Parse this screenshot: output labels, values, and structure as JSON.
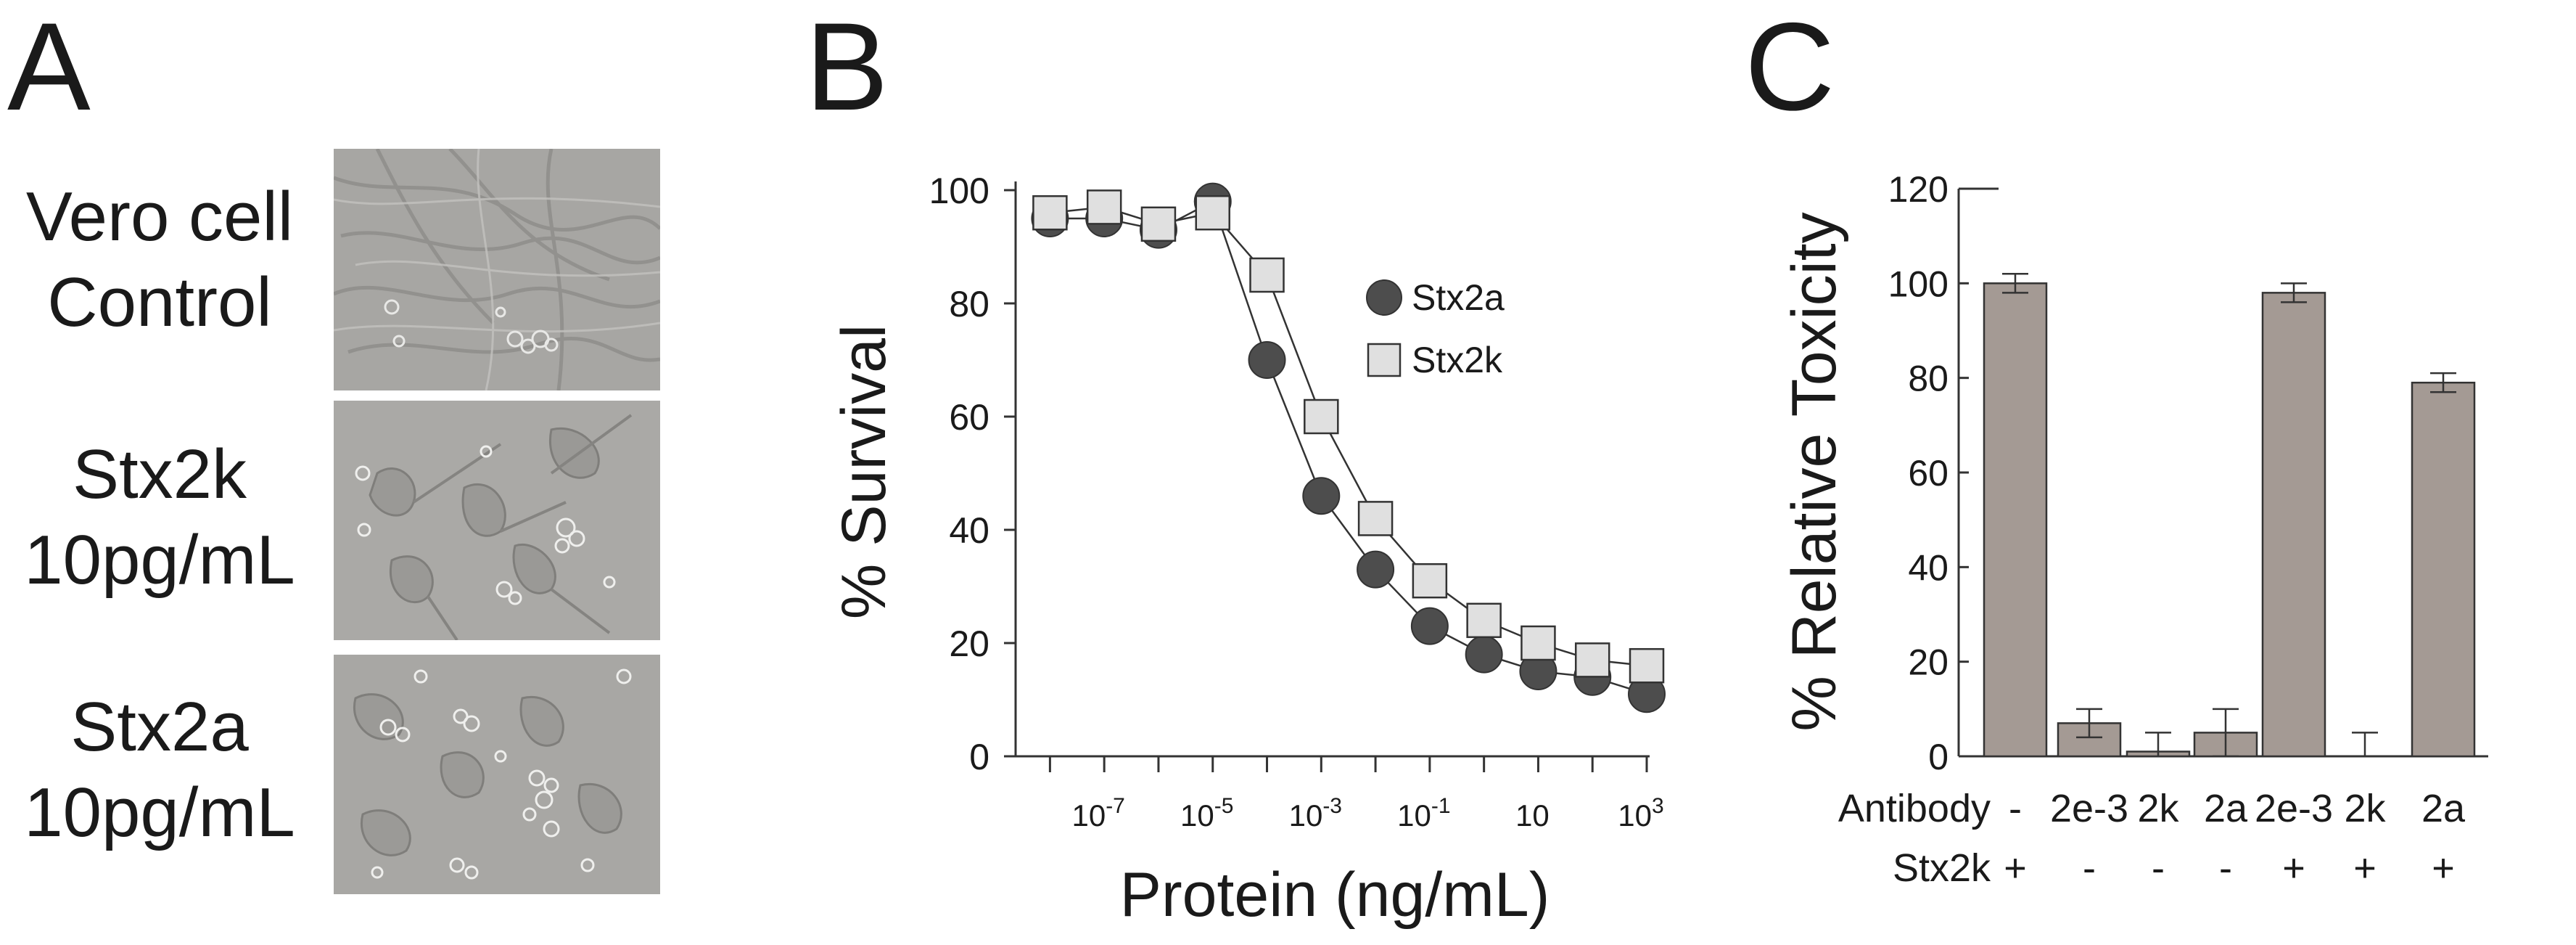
{
  "panels": {
    "a": {
      "letter": "A",
      "rows": [
        {
          "line1": "Vero cell",
          "line2": "Control"
        },
        {
          "line1": "Stx2k",
          "line2": "10pg/mL"
        },
        {
          "line1": "Stx2a",
          "line2": "10pg/mL"
        }
      ]
    },
    "b": {
      "letter": "B"
    },
    "c": {
      "letter": "C"
    }
  },
  "chart_data": [
    {
      "type": "scatter",
      "panel": "B",
      "title": "",
      "xlabel": "Protein (ng/mL)",
      "ylabel": "% Survival",
      "xscale": "log10",
      "xlim_exp": [
        -8.5,
        3
      ],
      "ylim": [
        0,
        100
      ],
      "yticks": [
        0,
        20,
        40,
        60,
        80,
        100
      ],
      "ytick_labels": [
        "0",
        "20",
        "40",
        "60",
        "80",
        "100"
      ],
      "xtick_labels": [
        {
          "exp": -7,
          "base": "10",
          "sup": "-7"
        },
        {
          "exp": -5,
          "base": "10",
          "sup": "-5"
        },
        {
          "exp": -3,
          "base": "10",
          "sup": "-3"
        },
        {
          "exp": -1,
          "base": "10",
          "sup": "-1"
        },
        {
          "exp": 1,
          "base": "10",
          "sup": ""
        },
        {
          "exp": 3,
          "base": "10",
          "sup": "3"
        }
      ],
      "legend_position": "top-right",
      "series": [
        {
          "name": "Stx2a",
          "marker": "circle",
          "color": "#4d4d4d",
          "x_exp": [
            -8,
            -7,
            -6,
            -5,
            -4,
            -3,
            -2,
            -1,
            0,
            1,
            2,
            3
          ],
          "y": [
            95,
            95,
            93,
            98,
            70,
            46,
            33,
            23,
            18,
            15,
            14,
            11
          ]
        },
        {
          "name": "Stx2k",
          "marker": "square",
          "color": "#e0e0e0",
          "x_exp": [
            -8,
            -7,
            -6,
            -5,
            -4,
            -3,
            -2,
            -1,
            0,
            1,
            2,
            3
          ],
          "y": [
            96,
            97,
            94,
            96,
            85,
            60,
            42,
            31,
            24,
            20,
            17,
            16
          ]
        }
      ]
    },
    {
      "type": "bar",
      "panel": "C",
      "ylabel": "% Relative Toxicity",
      "ylim": [
        0,
        120
      ],
      "yticks": [
        0,
        20,
        40,
        60,
        80,
        100,
        120
      ],
      "ytick_labels": [
        "0",
        "20",
        "40",
        "60",
        "80",
        "100",
        "120"
      ],
      "row_labels": [
        "Antibody",
        "Stx2k"
      ],
      "categories": [
        "-",
        "2e-3",
        "2k",
        "2a",
        "2e-3",
        "2k",
        "2a"
      ],
      "stx2k": [
        "+",
        "-",
        "-",
        "-",
        "+",
        "+",
        "+"
      ],
      "values": [
        100,
        7,
        1,
        5,
        98,
        0,
        79
      ],
      "errors": [
        2,
        3,
        4,
        5,
        2,
        5,
        2
      ],
      "bar_color": "#a49a94"
    }
  ]
}
